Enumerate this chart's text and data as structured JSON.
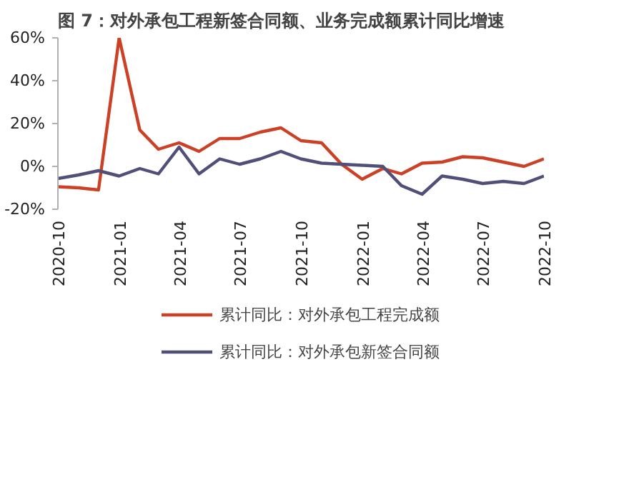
{
  "chart_data": {
    "type": "line",
    "title": "图 7：对外承包工程新签合同额、业务完成额累计同比增速",
    "x": [
      "2020-10",
      "2020-11",
      "2020-12",
      "2021-01",
      "2021-02",
      "2021-03",
      "2021-04",
      "2021-05",
      "2021-06",
      "2021-07",
      "2021-08",
      "2021-09",
      "2021-10",
      "2021-11",
      "2021-12",
      "2022-01",
      "2022-02",
      "2022-03",
      "2022-04",
      "2022-05",
      "2022-06",
      "2022-07",
      "2022-08",
      "2022-09",
      "2022-10"
    ],
    "series": [
      {
        "name": "累计同比：对外承包工程完成额",
        "color": "#cc4125",
        "values": [
          -9.5,
          -10,
          -11,
          60,
          17,
          8,
          11,
          7,
          13,
          13,
          16,
          18,
          12,
          11,
          1,
          -6,
          -1,
          -3.5,
          1.5,
          2,
          4.5,
          4,
          2,
          0,
          3.5
        ]
      },
      {
        "name": "累计同比：对外承包新签合同额",
        "color": "#4f4f78",
        "values": [
          -5.7,
          -4,
          -2,
          -4.5,
          -1,
          -3.5,
          9,
          -3.5,
          3.5,
          1,
          3.5,
          7,
          3.5,
          1.5,
          1,
          0.5,
          0,
          -9,
          -13,
          -4.5,
          -6,
          -8,
          -7,
          -8,
          -4.5
        ]
      }
    ],
    "xlim": [
      "2020-10",
      "2022-10"
    ],
    "xticks": [
      "2020-10",
      "2021-01",
      "2021-04",
      "2021-07",
      "2021-10",
      "2022-01",
      "2022-04",
      "2022-07",
      "2022-10"
    ],
    "ylim": [
      -20,
      60
    ],
    "yticks": [
      {
        "value": -20,
        "label": "-20%"
      },
      {
        "value": 0,
        "label": "0%"
      },
      {
        "value": 20,
        "label": "20%"
      },
      {
        "value": 40,
        "label": "40%"
      },
      {
        "value": 60,
        "label": "60%"
      }
    ],
    "legend": "bottom",
    "marker": "none",
    "line_style": "solid"
  }
}
